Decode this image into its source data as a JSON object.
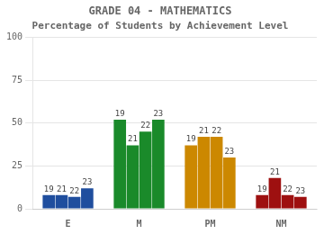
{
  "chart_data": {
    "type": "bar",
    "title": "GRADE 04 - MATHEMATICS",
    "subtitle": "Percentage of Students by Achievement Level",
    "categories": [
      "E",
      "M",
      "PM",
      "NM"
    ],
    "series": [
      {
        "name": "19",
        "values": [
          8,
          52,
          37,
          8
        ]
      },
      {
        "name": "21",
        "values": [
          8,
          37,
          42,
          18
        ]
      },
      {
        "name": "22",
        "values": [
          7,
          45,
          42,
          8
        ]
      },
      {
        "name": "23",
        "values": [
          12,
          52,
          30,
          7
        ]
      }
    ],
    "colors": [
      "#1f4e9e",
      "#1a8a2a",
      "#cc8800",
      "#9e1010"
    ],
    "ylim": [
      0,
      100
    ],
    "yticks": [
      0,
      25,
      50,
      75,
      100
    ],
    "grid": true
  }
}
